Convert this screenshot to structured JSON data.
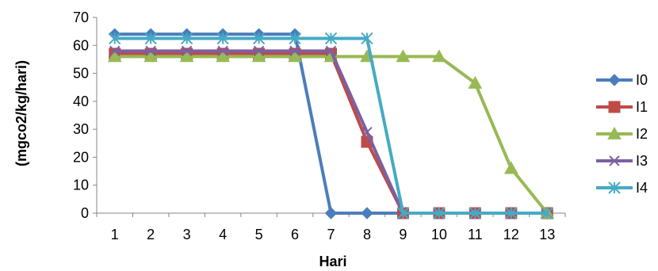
{
  "chart_data": {
    "type": "line",
    "title": "",
    "xlabel": "Hari",
    "ylabel": "(mgco2/kg/hari)",
    "categories": [
      "1",
      "2",
      "3",
      "4",
      "5",
      "6",
      "7",
      "8",
      "9",
      "10",
      "11",
      "12",
      "13"
    ],
    "ylim": [
      0,
      70
    ],
    "yticks": [
      0,
      10,
      20,
      30,
      40,
      50,
      60,
      70
    ],
    "grid": false,
    "legend_position": "right",
    "series": [
      {
        "name": "I0",
        "color": "#4a7ebb",
        "marker": "diamond",
        "values": [
          64,
          64,
          64,
          64,
          64,
          64,
          0,
          0,
          0,
          0,
          0,
          0,
          0
        ]
      },
      {
        "name": "I1",
        "color": "#be4b48",
        "marker": "square",
        "values": [
          57,
          57,
          57,
          57,
          57,
          57,
          57,
          25.5,
          0,
          0,
          0,
          0,
          0
        ]
      },
      {
        "name": "I2",
        "color": "#98b954",
        "marker": "triangle",
        "values": [
          56,
          56,
          56,
          56,
          56,
          56,
          56,
          56,
          56,
          56,
          46.5,
          16,
          0
        ]
      },
      {
        "name": "I3",
        "color": "#7d60a0",
        "marker": "x",
        "values": [
          58,
          58,
          58,
          58,
          58,
          58,
          58,
          29,
          0,
          0,
          0,
          0,
          0
        ]
      },
      {
        "name": "I4",
        "color": "#46aac5",
        "marker": "star",
        "values": [
          62.5,
          62.5,
          62.5,
          62.5,
          62.5,
          62.5,
          62.5,
          62.5,
          0,
          0,
          0,
          0,
          0
        ]
      }
    ]
  }
}
